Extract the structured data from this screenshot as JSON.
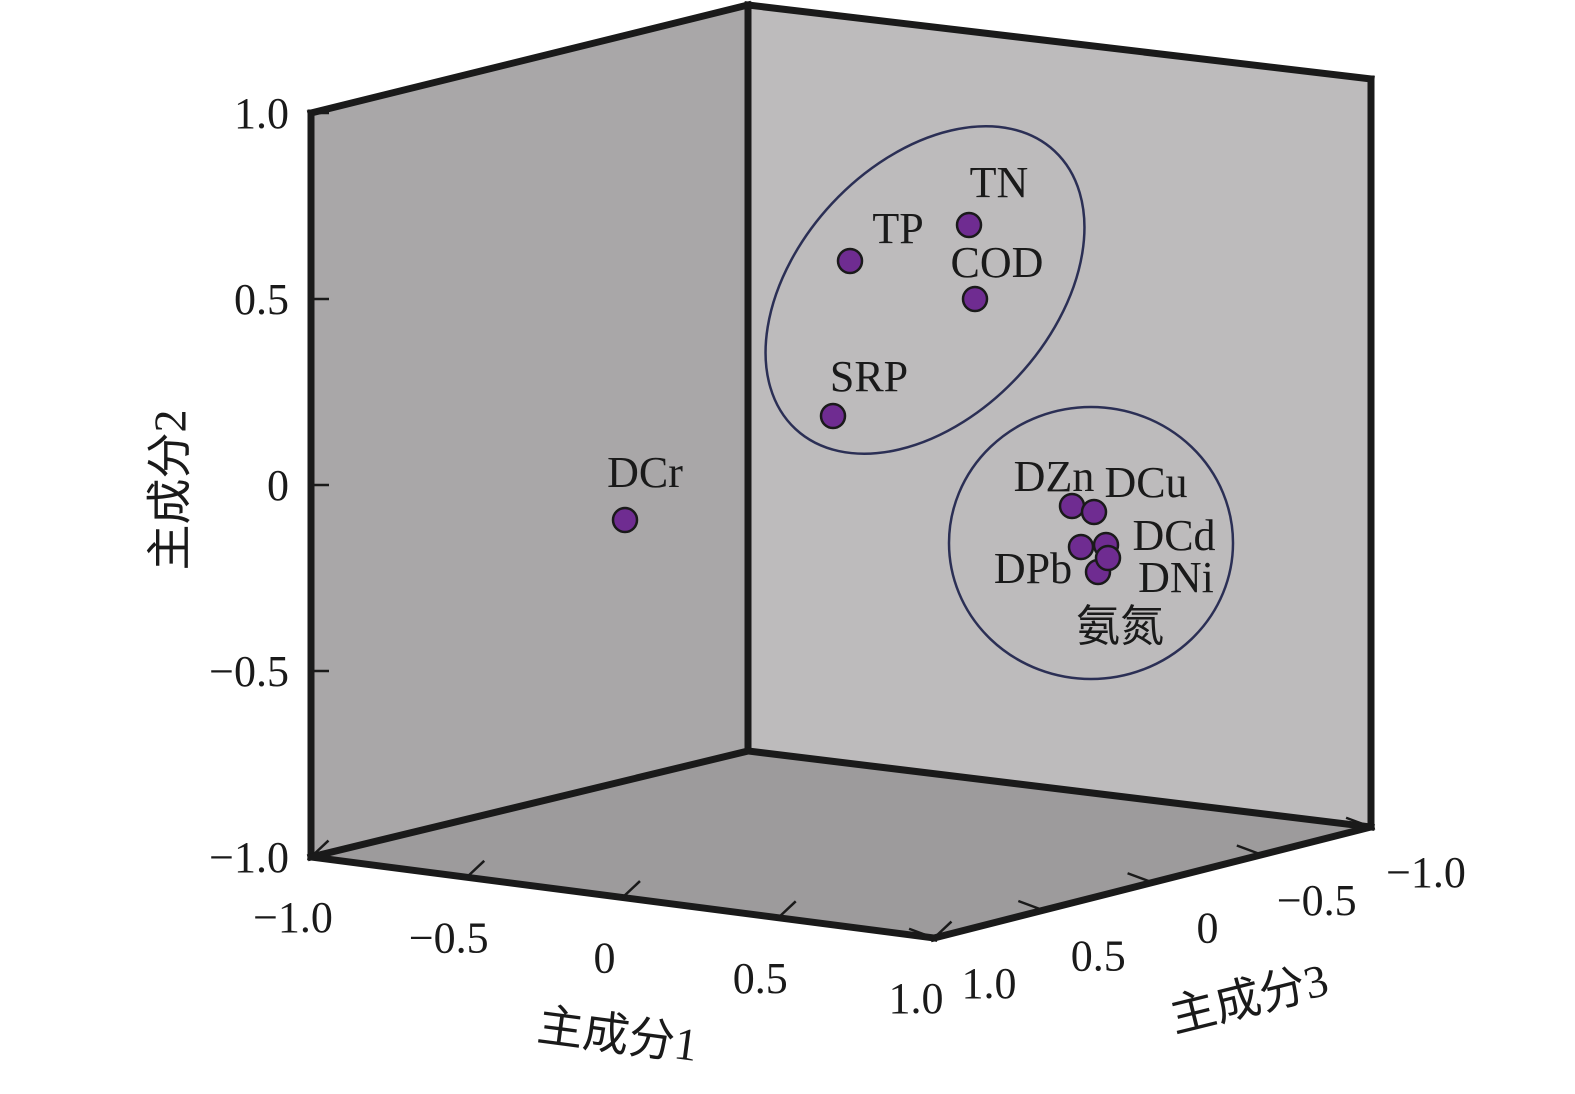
{
  "chart_data": {
    "type": "scatter",
    "dimensions": 3,
    "title": "",
    "axes": {
      "x": {
        "label": "主成分1",
        "ticks": [
          "−1.0",
          "−0.5",
          "0",
          "0.5",
          "1.0"
        ],
        "range": [
          -1.0,
          1.0
        ]
      },
      "y": {
        "label": "主成分2",
        "ticks": [
          "1.0",
          "0.5",
          "0",
          "−0.5",
          "−1.0"
        ],
        "range": [
          -1.0,
          1.0
        ]
      },
      "z": {
        "label": "主成分3",
        "ticks": [
          "1.0",
          "0.5",
          "0",
          "−0.5",
          "−1.0"
        ],
        "range": [
          -1.0,
          1.0
        ]
      }
    },
    "points": [
      {
        "label": "TN",
        "x": 0.69,
        "y": 0.7,
        "z": 0.0
      },
      {
        "label": "TP",
        "x": 0.3,
        "y": 0.61,
        "z": 0.0
      },
      {
        "label": "COD",
        "x": 0.71,
        "y": 0.5,
        "z": 0.0
      },
      {
        "label": "SRP",
        "x": 0.23,
        "y": 0.19,
        "z": 0.0
      },
      {
        "label": "DCr",
        "x": -0.08,
        "y": -0.09,
        "z": -1.0
      },
      {
        "label": "DZn",
        "x": 0.99,
        "y": -0.05,
        "z": 0.0
      },
      {
        "label": "DCu",
        "x": 1.05,
        "y": -0.07,
        "z": 0.0
      },
      {
        "label": "DCd",
        "x": 1.07,
        "y": -0.15,
        "z": 0.0
      },
      {
        "label": "DPb",
        "x": 1.01,
        "y": -0.16,
        "z": 0.0
      },
      {
        "label": "DNi",
        "x": 1.05,
        "y": -0.22,
        "z": 0.0
      },
      {
        "label": "氨氮",
        "x": 1.08,
        "y": -0.19,
        "z": 0.0
      }
    ],
    "clusters": [
      {
        "members": [
          "TN",
          "TP",
          "COD",
          "SRP"
        ]
      },
      {
        "members": [
          "DZn",
          "DCu",
          "DCd",
          "DPb",
          "DNi",
          "氨氮"
        ]
      }
    ]
  },
  "colors": {
    "left_wall": "#a9a7a8",
    "back_wall": "#bdbbbc",
    "floor": "#9d9b9c",
    "point_fill": "#6f2c91",
    "ellipse_stroke": "#2b2f55",
    "frame": "#1a1a1a"
  }
}
